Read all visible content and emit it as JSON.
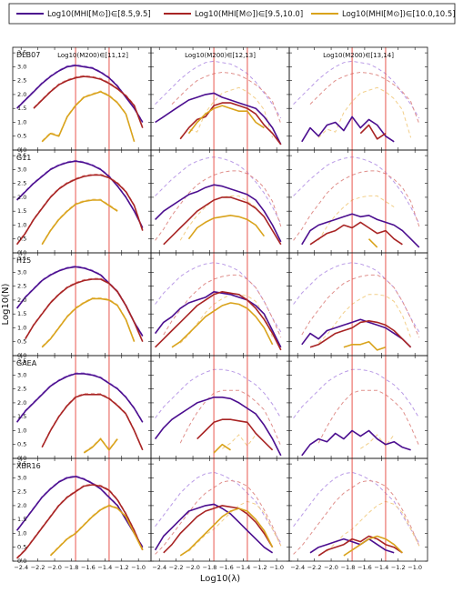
{
  "colors": {
    "purple": "#4b0e8f",
    "red": "#a82424",
    "gold": "#d9a31c",
    "vline": "#e8574f",
    "dashed_purple": "#b99ae6",
    "dashed_red": "#e0908c",
    "dashed_gold": "#f2cf8a"
  },
  "legend": {
    "entries": [
      {
        "label": "Log10(MHI[M⊙])∈[8.5,9.5]",
        "color": "purple"
      },
      {
        "label": "Log10(MHI[M⊙])∈[9.5,10.0]",
        "color": "red"
      },
      {
        "label": "Log10(MHI[M⊙])∈[10.0,10.5]",
        "color": "gold"
      }
    ]
  },
  "figure": {
    "xlabel": "Log10(λ)",
    "ylabel": "Log10(N)"
  },
  "chart_data": {
    "type": "line",
    "layout": "grid 5 rows x 3 columns",
    "rows": [
      "DLB07",
      "G11",
      "H15",
      "GAEA",
      "XBR16"
    ],
    "columns": [
      "Log10(M200)∈[11,12]",
      "Log10(M200)∈[12,13]",
      "Log10(M200)∈[13,14]"
    ],
    "xlim": [
      -2.5,
      -0.85
    ],
    "ylim": [
      0,
      3.7
    ],
    "xticks": [
      -2.4,
      -2.2,
      -2.0,
      -1.8,
      -1.6,
      -1.4,
      -1.2,
      -1.0
    ],
    "yticks": [
      0.0,
      0.5,
      1.0,
      1.5,
      2.0,
      2.5,
      3.0,
      3.5
    ],
    "vertical_lines": [
      -1.75,
      -1.35
    ],
    "x": [
      -2.45,
      -2.35,
      -2.25,
      -2.15,
      -2.05,
      -1.95,
      -1.85,
      -1.75,
      -1.65,
      -1.55,
      -1.45,
      -1.35,
      -1.25,
      -1.15,
      -1.05,
      -0.95
    ],
    "dashed_reference": "dashed curves show each H I mass bin for the [11,12] halo bin, repeated in every panel",
    "panels": [
      {
        "row": "DLB07",
        "col": 0,
        "series": [
          {
            "name": "purple",
            "values": [
              1.5,
              1.8,
              2.1,
              2.4,
              2.65,
              2.85,
              3.0,
              3.05,
              3.0,
              2.95,
              2.8,
              2.6,
              2.3,
              1.9,
              1.5,
              1.0
            ]
          },
          {
            "name": "red",
            "values": [
              0.8,
              null,
              1.5,
              1.8,
              2.1,
              2.35,
              2.5,
              2.6,
              2.65,
              2.62,
              2.55,
              2.4,
              2.2,
              1.95,
              1.6,
              0.8
            ]
          },
          {
            "name": "gold",
            "values": [
              null,
              null,
              null,
              0.3,
              0.6,
              0.5,
              1.2,
              1.6,
              1.9,
              2.0,
              2.1,
              1.95,
              1.7,
              1.3,
              0.3,
              null
            ]
          }
        ]
      },
      {
        "row": "DLB07",
        "col": 1,
        "series": [
          {
            "name": "purple",
            "values": [
              1.0,
              1.2,
              1.4,
              1.6,
              1.8,
              1.9,
              2.0,
              2.05,
              1.9,
              1.8,
              1.7,
              1.6,
              1.5,
              1.2,
              0.8,
              0.2
            ]
          },
          {
            "name": "red",
            "values": [
              null,
              null,
              null,
              0.4,
              0.8,
              1.1,
              1.2,
              1.6,
              1.7,
              1.7,
              1.6,
              1.5,
              1.3,
              0.9,
              0.6,
              0.2
            ]
          },
          {
            "name": "gold",
            "values": [
              null,
              null,
              null,
              null,
              0.6,
              1.0,
              1.3,
              1.5,
              1.6,
              1.5,
              1.4,
              1.4,
              1.0,
              0.8,
              null,
              null
            ]
          }
        ]
      },
      {
        "row": "DLB07",
        "col": 2,
        "series": [
          {
            "name": "purple",
            "values": [
              null,
              0.3,
              0.8,
              0.5,
              0.9,
              1.0,
              0.7,
              1.2,
              0.8,
              1.1,
              0.9,
              0.5,
              0.3,
              null,
              null,
              null
            ]
          },
          {
            "name": "red",
            "values": [
              null,
              null,
              null,
              null,
              null,
              null,
              0.3,
              null,
              0.6,
              0.9,
              0.4,
              0.6,
              null,
              null,
              null,
              null
            ]
          }
        ]
      },
      {
        "row": "G11",
        "col": 0,
        "series": [
          {
            "name": "purple",
            "values": [
              1.9,
              2.2,
              2.5,
              2.75,
              3.0,
              3.15,
              3.25,
              3.3,
              3.25,
              3.15,
              3.0,
              2.75,
              2.4,
              2.0,
              1.5,
              0.9
            ]
          },
          {
            "name": "red",
            "values": [
              0.3,
              0.7,
              1.2,
              1.6,
              2.0,
              2.3,
              2.5,
              2.65,
              2.75,
              2.8,
              2.8,
              2.7,
              2.5,
              2.2,
              1.7,
              0.8
            ]
          },
          {
            "name": "gold",
            "values": [
              null,
              null,
              null,
              0.3,
              0.8,
              1.2,
              1.5,
              1.75,
              1.85,
              1.9,
              1.9,
              1.7,
              1.5,
              null,
              null,
              null
            ]
          }
        ]
      },
      {
        "row": "G11",
        "col": 1,
        "series": [
          {
            "name": "purple",
            "values": [
              1.2,
              1.5,
              1.7,
              1.9,
              2.1,
              2.2,
              2.35,
              2.45,
              2.4,
              2.3,
              2.2,
              2.1,
              1.9,
              1.5,
              1.0,
              0.4
            ]
          },
          {
            "name": "red",
            "values": [
              null,
              0.3,
              0.6,
              0.9,
              1.2,
              1.5,
              1.7,
              1.9,
              2.0,
              2.0,
              1.9,
              1.8,
              1.6,
              1.3,
              0.8,
              0.3
            ]
          },
          {
            "name": "gold",
            "values": [
              null,
              null,
              null,
              null,
              0.5,
              0.9,
              1.1,
              1.25,
              1.3,
              1.35,
              1.3,
              1.2,
              1.0,
              0.6,
              null,
              null
            ]
          }
        ]
      },
      {
        "row": "G11",
        "col": 2,
        "series": [
          {
            "name": "purple",
            "values": [
              null,
              0.3,
              0.8,
              1.0,
              1.1,
              1.2,
              1.3,
              1.4,
              1.3,
              1.35,
              1.2,
              1.1,
              1.0,
              0.8,
              0.5,
              0.2
            ]
          },
          {
            "name": "red",
            "values": [
              null,
              null,
              0.3,
              0.5,
              0.7,
              0.8,
              1.0,
              0.9,
              1.1,
              0.9,
              0.7,
              0.8,
              0.5,
              0.3,
              null,
              null
            ]
          },
          {
            "name": "gold",
            "values": [
              null,
              null,
              null,
              null,
              null,
              null,
              null,
              0.2,
              null,
              0.5,
              0.2,
              null,
              null,
              null,
              null,
              null
            ]
          }
        ]
      },
      {
        "row": "H15",
        "col": 0,
        "series": [
          {
            "name": "purple",
            "values": [
              1.7,
              2.1,
              2.4,
              2.7,
              2.9,
              3.05,
              3.15,
              3.2,
              3.15,
              3.05,
              2.9,
              2.6,
              2.3,
              1.8,
              1.2,
              0.7
            ]
          },
          {
            "name": "red",
            "values": [
              null,
              0.6,
              1.1,
              1.5,
              1.9,
              2.2,
              2.45,
              2.6,
              2.7,
              2.75,
              2.75,
              2.6,
              2.3,
              1.8,
              1.2,
              0.5
            ]
          },
          {
            "name": "gold",
            "values": [
              null,
              null,
              null,
              0.3,
              0.6,
              1.0,
              1.4,
              1.7,
              1.9,
              2.05,
              2.05,
              2.0,
              1.8,
              1.3,
              0.5,
              null
            ]
          }
        ]
      },
      {
        "row": "H15",
        "col": 1,
        "series": [
          {
            "name": "purple",
            "values": [
              0.8,
              1.2,
              1.4,
              1.7,
              1.9,
              2.0,
              2.1,
              2.3,
              2.25,
              2.2,
              2.1,
              2.0,
              1.8,
              1.5,
              0.9,
              0.3
            ]
          },
          {
            "name": "red",
            "values": [
              0.3,
              0.6,
              0.9,
              1.2,
              1.5,
              1.8,
              2.0,
              2.2,
              2.3,
              2.25,
              2.2,
              2.0,
              1.7,
              1.3,
              0.8,
              0.2
            ]
          },
          {
            "name": "gold",
            "values": [
              null,
              null,
              0.3,
              0.5,
              0.8,
              1.1,
              1.4,
              1.6,
              1.8,
              1.9,
              1.85,
              1.7,
              1.4,
              1.0,
              0.4,
              null
            ]
          }
        ]
      },
      {
        "row": "H15",
        "col": 2,
        "series": [
          {
            "name": "purple",
            "values": [
              null,
              0.4,
              0.8,
              0.6,
              0.9,
              1.0,
              1.1,
              1.2,
              1.3,
              1.2,
              1.1,
              1.0,
              0.8,
              0.6,
              0.3,
              null
            ]
          },
          {
            "name": "red",
            "values": [
              null,
              null,
              0.3,
              0.4,
              0.6,
              0.8,
              0.9,
              1.0,
              1.2,
              1.25,
              1.2,
              1.1,
              0.9,
              0.6,
              0.3,
              null
            ]
          },
          {
            "name": "gold",
            "values": [
              null,
              null,
              null,
              null,
              null,
              null,
              0.3,
              0.4,
              0.4,
              0.5,
              0.2,
              0.3,
              null,
              null,
              null,
              null
            ]
          }
        ]
      },
      {
        "row": "GAEA",
        "col": 0,
        "series": [
          {
            "name": "purple",
            "values": [
              1.3,
              1.7,
              2.0,
              2.3,
              2.6,
              2.8,
              2.95,
              3.05,
              3.05,
              3.0,
              2.9,
              2.7,
              2.5,
              2.2,
              1.8,
              1.3
            ]
          },
          {
            "name": "red",
            "values": [
              null,
              null,
              null,
              0.4,
              1.0,
              1.5,
              1.9,
              2.2,
              2.3,
              2.3,
              2.3,
              2.15,
              1.9,
              1.6,
              1.0,
              0.3
            ]
          },
          {
            "name": "gold",
            "values": [
              null,
              null,
              null,
              null,
              null,
              null,
              null,
              null,
              0.2,
              0.4,
              0.7,
              0.3,
              0.7,
              null,
              null,
              null
            ]
          }
        ]
      },
      {
        "row": "GAEA",
        "col": 1,
        "series": [
          {
            "name": "purple",
            "values": [
              0.7,
              1.1,
              1.4,
              1.6,
              1.8,
              2.0,
              2.1,
              2.2,
              2.2,
              2.15,
              2.0,
              1.8,
              1.6,
              1.2,
              0.7,
              0.1
            ]
          },
          {
            "name": "red",
            "values": [
              null,
              null,
              null,
              null,
              null,
              0.7,
              1.0,
              1.3,
              1.4,
              1.4,
              1.35,
              1.3,
              0.9,
              0.6,
              0.3,
              null
            ]
          },
          {
            "name": "gold",
            "values": [
              null,
              null,
              null,
              null,
              null,
              null,
              null,
              0.2,
              0.5,
              0.3,
              null,
              null,
              null,
              null,
              null,
              null
            ]
          }
        ]
      },
      {
        "row": "GAEA",
        "col": 2,
        "series": [
          {
            "name": "purple",
            "values": [
              null,
              0.1,
              0.5,
              0.7,
              0.6,
              0.9,
              0.7,
              1.0,
              0.8,
              1.0,
              0.7,
              0.5,
              0.6,
              0.4,
              0.3,
              null
            ]
          }
        ]
      },
      {
        "row": "XBR16",
        "col": 0,
        "series": [
          {
            "name": "purple",
            "values": [
              1.1,
              1.5,
              1.9,
              2.3,
              2.6,
              2.85,
              3.0,
              3.05,
              2.95,
              2.8,
              2.6,
              2.3,
              2.0,
              1.5,
              1.0,
              0.5
            ]
          },
          {
            "name": "red",
            "values": [
              0.1,
              0.4,
              0.8,
              1.2,
              1.6,
              2.0,
              2.3,
              2.5,
              2.7,
              2.75,
              2.7,
              2.55,
              2.2,
              1.7,
              1.1,
              0.4
            ]
          },
          {
            "name": "gold",
            "values": [
              null,
              null,
              null,
              null,
              0.2,
              0.5,
              0.8,
              1.0,
              1.3,
              1.6,
              1.85,
              2.0,
              1.9,
              1.6,
              1.0,
              0.4
            ]
          }
        ]
      },
      {
        "row": "XBR16",
        "col": 1,
        "series": [
          {
            "name": "purple",
            "values": [
              0.4,
              0.9,
              1.2,
              1.5,
              1.8,
              1.9,
              2.0,
              2.05,
              1.9,
              1.7,
              1.4,
              1.1,
              0.8,
              0.5,
              0.3,
              null
            ]
          },
          {
            "name": "red",
            "values": [
              null,
              0.3,
              0.6,
              1.0,
              1.3,
              1.6,
              1.8,
              1.9,
              2.0,
              1.95,
              1.9,
              1.7,
              1.4,
              1.0,
              0.5,
              null
            ]
          },
          {
            "name": "gold",
            "values": [
              null,
              null,
              null,
              0.2,
              0.4,
              0.7,
              1.0,
              1.3,
              1.6,
              1.8,
              1.9,
              1.8,
              1.5,
              1.1,
              0.5,
              null
            ]
          }
        ]
      },
      {
        "row": "XBR16",
        "col": 2,
        "series": [
          {
            "name": "purple",
            "values": [
              null,
              null,
              0.3,
              0.5,
              0.6,
              0.7,
              0.8,
              0.7,
              0.6,
              0.8,
              0.6,
              0.4,
              0.3,
              null,
              null,
              null
            ]
          },
          {
            "name": "red",
            "values": [
              null,
              null,
              null,
              0.2,
              0.4,
              0.5,
              0.6,
              0.8,
              0.7,
              0.9,
              0.8,
              0.6,
              0.5,
              0.3,
              null,
              null
            ]
          },
          {
            "name": "gold",
            "values": [
              null,
              null,
              null,
              null,
              null,
              null,
              0.2,
              0.4,
              0.6,
              0.8,
              0.9,
              0.8,
              0.6,
              0.3,
              null,
              null
            ]
          }
        ]
      }
    ]
  }
}
